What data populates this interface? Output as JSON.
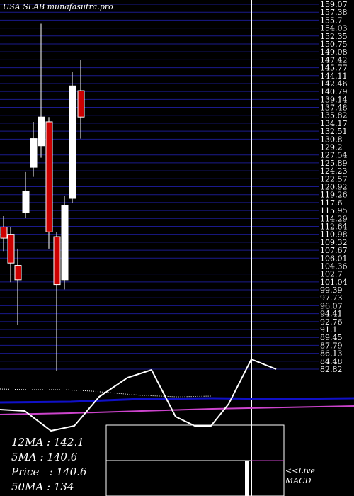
{
  "header": {
    "title": "USA SLAB munafasutra.pro"
  },
  "colors": {
    "background": "#000000",
    "grid": "#1a1a8c",
    "bull": "#ffffff",
    "bear": "#cc0000",
    "ma_blue": "#1010c8",
    "ma_pink": "#cc44cc"
  },
  "chart_data": {
    "type": "candlestick",
    "title": "USA SLAB munafasutra.pro",
    "y_ticks": [
      "159.07",
      "157.38",
      "155.7",
      "154.03",
      "152.35",
      "150.75",
      "149.08",
      "147.42",
      "145.77",
      "144.11",
      "142.46",
      "140.79",
      "139.14",
      "137.48",
      "135.82",
      "134.17",
      "132.51",
      "130.8",
      "129.2",
      "127.54",
      "125.89",
      "124.23",
      "122.57",
      "120.92",
      "119.26",
      "117.6",
      "115.95",
      "114.29",
      "112.64",
      "110.98",
      "109.32",
      "107.67",
      "106.01",
      "104.36",
      "102.7",
      "101.04",
      "99.39",
      "97.73",
      "96.07",
      "94.41",
      "92.76",
      "91.1",
      "89.45",
      "87.79",
      "86.13",
      "84.48",
      "82.82"
    ],
    "ylim": [
      82.82,
      159.07
    ],
    "candles": [
      {
        "x": 5,
        "open": 112.5,
        "close": 110.2,
        "high": 114.8,
        "low": 107.5
      },
      {
        "x": 15,
        "open": 111.0,
        "close": 105.0,
        "high": 112.5,
        "low": 101.0
      },
      {
        "x": 25,
        "open": 104.5,
        "close": 101.5,
        "high": 108.0,
        "low": 92.0
      },
      {
        "x": 36,
        "open": 115.5,
        "close": 120.0,
        "high": 124.0,
        "low": 114.5
      },
      {
        "x": 47,
        "open": 125.0,
        "close": 131.0,
        "high": 134.5,
        "low": 123.0
      },
      {
        "x": 58,
        "open": 129.5,
        "close": 135.5,
        "high": 155.0,
        "low": 127.0
      },
      {
        "x": 69,
        "open": 134.5,
        "close": 111.5,
        "high": 135.5,
        "low": 108.0
      },
      {
        "x": 80,
        "open": 110.5,
        "close": 100.5,
        "high": 111.5,
        "low": 82.5
      },
      {
        "x": 91,
        "open": 101.5,
        "close": 117.0,
        "high": 119.0,
        "low": 99.5
      },
      {
        "x": 102,
        "open": 118.5,
        "close": 142.0,
        "high": 145.0,
        "low": 117.5
      },
      {
        "x": 114,
        "open": 141.0,
        "close": 135.5,
        "high": 147.5,
        "low": 131.0
      }
    ],
    "macd_line": [
      {
        "x": 0,
        "y": 578
      },
      {
        "x": 35,
        "y": 580
      },
      {
        "x": 72,
        "y": 608
      },
      {
        "x": 105,
        "y": 601
      },
      {
        "x": 140,
        "y": 560
      },
      {
        "x": 180,
        "y": 533
      },
      {
        "x": 214,
        "y": 522
      },
      {
        "x": 248,
        "y": 588
      },
      {
        "x": 275,
        "y": 601
      },
      {
        "x": 298,
        "y": 601
      },
      {
        "x": 323,
        "y": 570
      },
      {
        "x": 355,
        "y": 507
      },
      {
        "x": 390,
        "y": 521
      }
    ],
    "signal_line": [
      {
        "x": 0,
        "y": 549
      },
      {
        "x": 40,
        "y": 550
      },
      {
        "x": 90,
        "y": 550
      },
      {
        "x": 130,
        "y": 552
      },
      {
        "x": 165,
        "y": 555
      },
      {
        "x": 200,
        "y": 558
      },
      {
        "x": 250,
        "y": 560
      },
      {
        "x": 300,
        "y": 559
      }
    ],
    "ma_blue_line": [
      {
        "x": 0,
        "y": 568
      },
      {
        "x": 100,
        "y": 567
      },
      {
        "x": 200,
        "y": 563
      },
      {
        "x": 300,
        "y": 562
      },
      {
        "x": 400,
        "y": 563
      },
      {
        "x": 500,
        "y": 562
      }
    ],
    "ma_pink_line": [
      {
        "x": 0,
        "y": 585
      },
      {
        "x": 100,
        "y": 583
      },
      {
        "x": 200,
        "y": 580
      },
      {
        "x": 300,
        "y": 577
      },
      {
        "x": 400,
        "y": 575
      },
      {
        "x": 500,
        "y": 573
      }
    ],
    "ma_values": [
      {
        "label": "12MA",
        "value": "142.1"
      },
      {
        "label": "5MA",
        "value": "140.6"
      },
      {
        "label": "Price",
        "value": "140.6"
      },
      {
        "label": "50MA",
        "value": "134"
      }
    ]
  },
  "macd_panel": {
    "line1": "<<Live",
    "line2": "MACD"
  }
}
